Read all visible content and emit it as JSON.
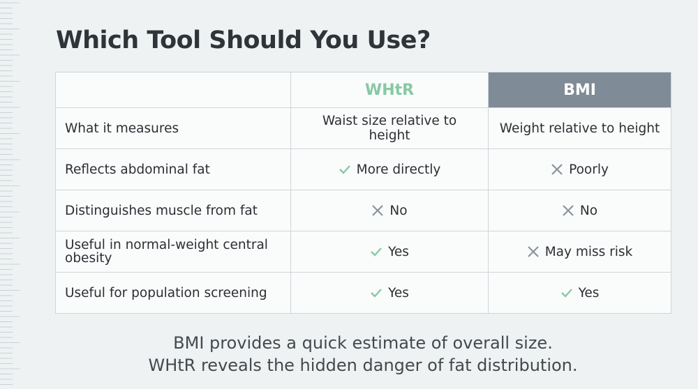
{
  "title": "Which Tool Should You Use?",
  "table": {
    "header": [
      "WHtR",
      "BMI"
    ],
    "rows": [
      [
        "What it measures",
        "Waist size relative to height",
        "Weight relative to height"
      ],
      [
        "Reflects abdominal fat",
        "More directly",
        "Poorly"
      ],
      [
        "Distinguishes muscle from fat",
        "No",
        "No"
      ],
      [
        "Useful in normal-weight central obesity",
        "Yes",
        "May miss risk"
      ],
      [
        "Useful for population screening",
        "Yes",
        "Yes"
      ]
    ]
  },
  "footer": [
    "BMI provides a quick estimate of overall size.",
    "WHtR reveals the hidden danger of fat distribution."
  ]
}
